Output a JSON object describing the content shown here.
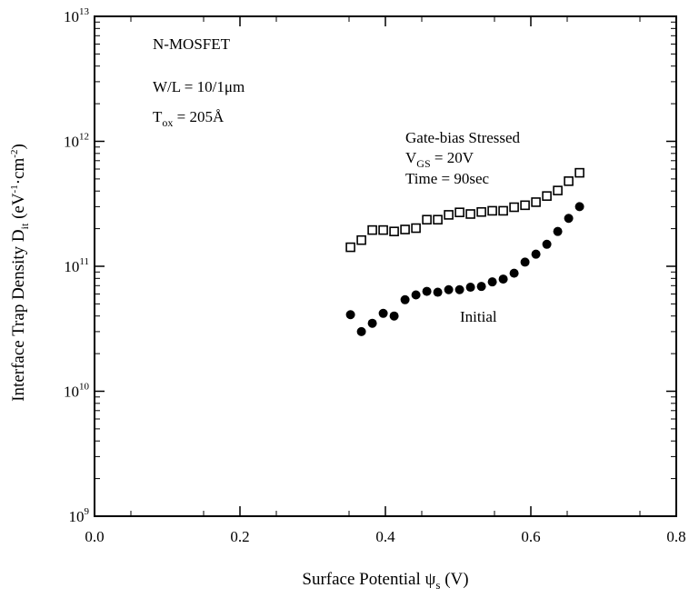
{
  "chart_data": {
    "type": "scatter",
    "title": "",
    "xlabel": "Surface Potential ψ",
    "xlabel_sub": "s",
    "xlabel_unit": " (V)",
    "ylabel": "Interface Trap Density D",
    "ylabel_sub": "it",
    "ylabel_unit": " (eV",
    "ylabel_sup1": "-1",
    "ylabel_mid": "cm",
    "ylabel_sup2": "-2",
    "ylabel_end": ")",
    "xlim": [
      0,
      0.8
    ],
    "ylim": [
      1000000000.0,
      10000000000000.0
    ],
    "yscale": "log",
    "xticks": [
      0.0,
      0.2,
      0.4,
      0.6,
      0.8
    ],
    "xtick_labels": [
      "0.0",
      "0.2",
      "0.4",
      "0.6",
      "0.8"
    ],
    "yticks": [
      1000000000.0,
      10000000000.0,
      100000000000.0,
      1000000000000.0,
      10000000000000.0
    ],
    "ytick_base": "10",
    "ytick_exps": [
      "9",
      "10",
      "11",
      "12",
      "13"
    ],
    "device_annotation": {
      "line1": "N-MOSFET",
      "line2": "W/L = 10/1μm",
      "line3_prefix": "T",
      "line3_sub": "ox",
      "line3_suffix": " = 205Å"
    },
    "series": [
      {
        "name": "Gate-bias Stressed",
        "marker": "open-square",
        "label_lines": [
          "Gate-bias Stressed",
          "V",
          "GS",
          " = 20V",
          "Time = 90sec"
        ],
        "x": [
          0.352,
          0.367,
          0.382,
          0.397,
          0.412,
          0.427,
          0.442,
          0.457,
          0.472,
          0.487,
          0.502,
          0.517,
          0.532,
          0.547,
          0.562,
          0.577,
          0.592,
          0.607,
          0.622,
          0.637,
          0.652,
          0.667
        ],
        "y": [
          142000000000.0,
          162000000000.0,
          195000000000.0,
          195000000000.0,
          190000000000.0,
          197000000000.0,
          202000000000.0,
          236000000000.0,
          236000000000.0,
          258000000000.0,
          270000000000.0,
          262000000000.0,
          272000000000.0,
          278000000000.0,
          278000000000.0,
          297000000000.0,
          308000000000.0,
          326000000000.0,
          365000000000.0,
          404000000000.0,
          480000000000.0,
          560000000000.0
        ]
      },
      {
        "name": "Initial",
        "marker": "filled-circle",
        "x": [
          0.352,
          0.367,
          0.382,
          0.397,
          0.412,
          0.427,
          0.442,
          0.457,
          0.472,
          0.487,
          0.502,
          0.517,
          0.532,
          0.547,
          0.562,
          0.577,
          0.592,
          0.607,
          0.622,
          0.637,
          0.652,
          0.667
        ],
        "y": [
          41000000000.0,
          30000000000.0,
          35000000000.0,
          42000000000.0,
          40000000000.0,
          54000000000.0,
          59000000000.0,
          63000000000.0,
          62000000000.0,
          65000000000.0,
          65000000000.0,
          68000000000.0,
          69000000000.0,
          75000000000.0,
          79000000000.0,
          88000000000.0,
          108000000000.0,
          125000000000.0,
          150000000000.0,
          190000000000.0,
          242000000000.0,
          300000000000.0
        ]
      }
    ]
  }
}
